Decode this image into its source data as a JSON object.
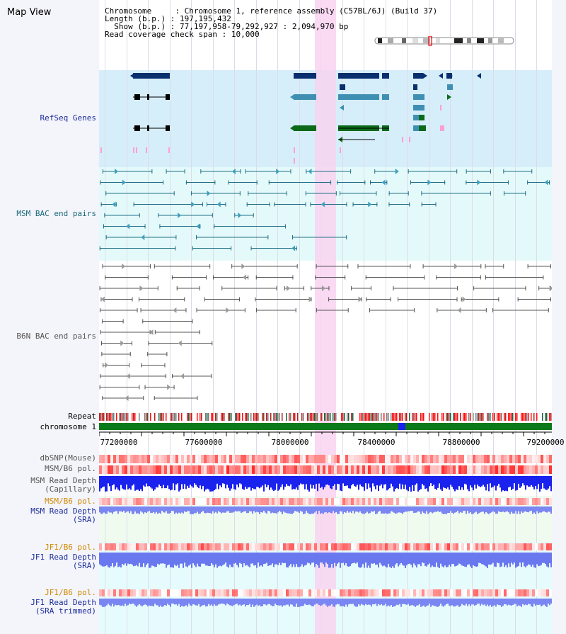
{
  "title": "Map View",
  "info": {
    "chromosome_label": "Chromosome",
    "chromosome_value": "Chromosome 1, reference assembly (C57BL/6J) (Build 37)",
    "length_label": "Length (b.p.)",
    "length_value": "197,195,432",
    "show_label": "Show (b.p.)",
    "show_value": "77,197,958-79,292,927 : 2,094,970 bp",
    "coverage_label": "Read coverage check span",
    "coverage_value": "10,000"
  },
  "tracks": {
    "refseq": "RefSeq Genes",
    "msm_bac": "MSM BAC end pairs",
    "b6n_bac": "B6N BAC end pairs",
    "repeat": "Repeat",
    "chromosome": "chromosome 1",
    "dbsnp": "dbSNP(Mouse)",
    "msm_b6_pol": "MSM/B6 pol.",
    "msm_read_depth_cap_1": "MSM Read Depth",
    "msm_read_depth_cap_2": "(Capillary)",
    "msm_b6_pol_2": "MSM/B6 pol.",
    "msm_read_depth_sra_1": "MSM Read Depth",
    "msm_read_depth_sra_2": "(SRA)",
    "jf1_b6_pol": "JF1/B6 pol.",
    "jf1_read_depth_sra_1": "JF1 Read Depth",
    "jf1_read_depth_sra_2": "(SRA)",
    "jf1_b6_pol_2": "JF1/B6 pol.",
    "jf1_read_depth_trim_1": "JF1 Read Depth",
    "jf1_read_depth_trim_2": "(SRA trimmed)"
  },
  "axis": {
    "ticks": [
      "77200000",
      "77600000",
      "78000000",
      "78400000",
      "78800000",
      "79200000"
    ]
  },
  "colors": {
    "refseq_bg": "#d6eefa",
    "msm_bg": "#e4fafa",
    "highlight": "#f8d4f0",
    "gene_dark": "#0a2f6e",
    "gene_mid": "#3f8fb3",
    "gene_green": "#0b6a1a",
    "pink": "#ff9fd0",
    "chrom_green": "#0b7a1a",
    "depth_blue": "#1a22ee",
    "depth_light": "#7a86f2"
  }
}
